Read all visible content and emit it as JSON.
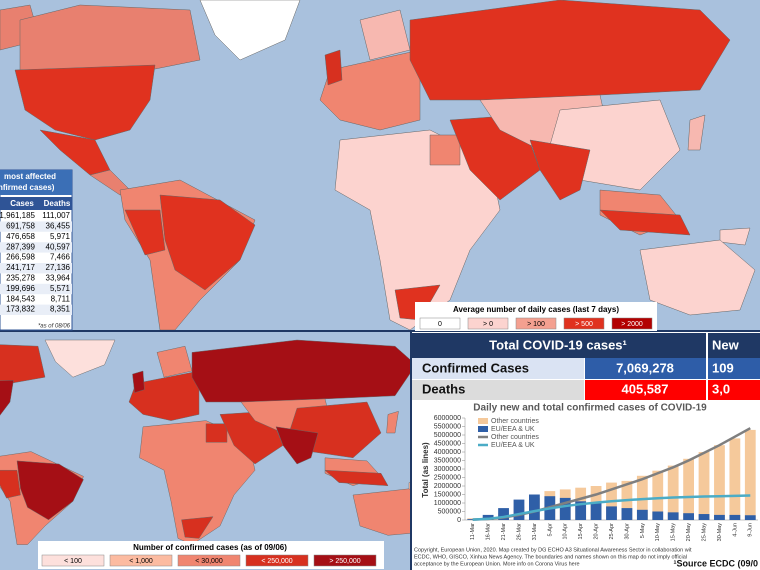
{
  "top_map": {
    "legend_title": "Average number of daily cases (last 7 days)",
    "legend": [
      "0",
      "> 0",
      "> 100",
      "> 500",
      "> 2000"
    ],
    "colors": [
      "#ffffff",
      "#fcd3cf",
      "#f4a090",
      "#e0321f",
      "#b30000"
    ]
  },
  "table": {
    "title": [
      "most affected",
      "nfirmed cases)"
    ],
    "header": [
      "Cases",
      "Deaths"
    ],
    "rows": [
      [
        "1,961,185",
        "111,007"
      ],
      [
        "691,758",
        "36,455"
      ],
      [
        "476,658",
        "5,971"
      ],
      [
        "287,399",
        "40,597"
      ],
      [
        "266,598",
        "7,466"
      ],
      [
        "241,717",
        "27,136"
      ],
      [
        "235,278",
        "33,964"
      ],
      [
        "199,696",
        "5,571"
      ],
      [
        "184,543",
        "8,711"
      ],
      [
        "173,832",
        "8,351"
      ]
    ],
    "note": "*as of 08/06"
  },
  "bottom_map": {
    "legend_title": "Number of confirmed cases (as of 09/06)",
    "legend": [
      "< 100",
      "< 1,000",
      "< 30,000",
      "< 250,000",
      "> 250,000"
    ],
    "colors": [
      "#fde0dc",
      "#fcbba1",
      "#f08570",
      "#d7301f",
      "#a50f15"
    ]
  },
  "summary": {
    "title": "Total COVID-19 cases¹",
    "new_header": "New",
    "rows": [
      {
        "label": "Confirmed Cases",
        "total": "7,069,278",
        "new": "109"
      },
      {
        "label": "Deaths",
        "total": "405,587",
        "new": "3,0"
      }
    ]
  },
  "chart_data": {
    "type": "bar",
    "title": "Daily new and total confirmed cases of COVID-19",
    "ylabel": "Total (as lines)",
    "categories": [
      "11-Mar",
      "16-Mar",
      "21-Mar",
      "26-Mar",
      "31-Mar",
      "5-Apr",
      "10-Apr",
      "15-Apr",
      "20-Apr",
      "25-Apr",
      "30-Apr",
      "5-May",
      "10-May",
      "15-May",
      "20-May",
      "25-May",
      "30-May",
      "4-Jun",
      "9-Jun"
    ],
    "ylim": [
      0,
      6000000
    ],
    "yticks": [
      0,
      500000,
      1000000,
      1500000,
      2000000,
      2500000,
      3000000,
      3500000,
      4000000,
      4500000,
      5000000,
      5500000,
      6000000
    ],
    "series": [
      {
        "name": "Other countries",
        "kind": "bar",
        "color": "#f5c99b",
        "values": [
          100000,
          200000,
          400000,
          800000,
          1300000,
          1700000,
          1800000,
          1900000,
          2000000,
          2200000,
          2300000,
          2600000,
          2900000,
          3200000,
          3600000,
          4000000,
          4400000,
          4800000,
          5300000
        ]
      },
      {
        "name": "EU/EEA & UK",
        "kind": "bar",
        "color": "#2f5fa7",
        "values": [
          50000,
          300000,
          700000,
          1200000,
          1500000,
          1400000,
          1300000,
          1100000,
          1000000,
          800000,
          700000,
          600000,
          500000,
          450000,
          400000,
          350000,
          300000,
          300000,
          280000
        ]
      },
      {
        "name": "Other countries",
        "kind": "line",
        "color": "#7f7f7f",
        "values": [
          20000,
          60000,
          150000,
          300000,
          500000,
          750000,
          1000000,
          1250000,
          1500000,
          1800000,
          2100000,
          2400000,
          2750000,
          3100000,
          3500000,
          3950000,
          4400000,
          4900000,
          5400000
        ]
      },
      {
        "name": "EU/EEA & UK",
        "kind": "line",
        "color": "#4bacc6",
        "values": [
          20000,
          70000,
          180000,
          350000,
          520000,
          680000,
          820000,
          930000,
          1020000,
          1100000,
          1170000,
          1230000,
          1280000,
          1320000,
          1350000,
          1380000,
          1400000,
          1420000,
          1440000
        ]
      }
    ]
  },
  "copyright": [
    "Copyright, European Union, 2020. Map created by DG ECHO A3 Situational Awareness Sector in collaboration wit",
    "ECDC, WHO, GISCO, Xinhua News Agency. The boundaries and names shown on this map do not imply official",
    "acceptance by the European Union. More info on Corona Virus here"
  ],
  "source": "¹Source ECDC (09/0"
}
